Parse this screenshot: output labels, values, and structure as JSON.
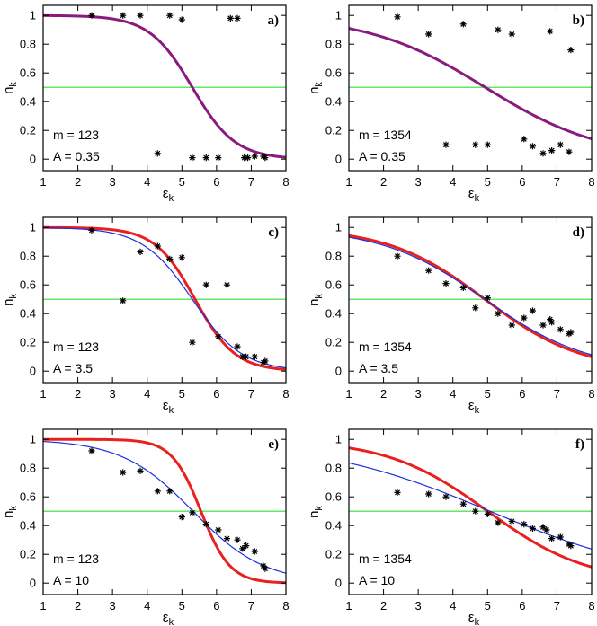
{
  "colors": {
    "green": "#33dd33",
    "purple": "#8b1a7e",
    "red": "#e8211f",
    "blue": "#1a30e0",
    "marker": "#000000"
  },
  "chart_data": [
    {
      "type": "scatter",
      "panel_label": "a)",
      "xlabel": "ε",
      "xlabel_sub": "k",
      "ylabel": "n",
      "ylabel_sub": "k",
      "xlim": [
        1,
        8
      ],
      "ylim": [
        -0.08,
        1.07
      ],
      "xticks": [
        1,
        2,
        3,
        4,
        5,
        6,
        7,
        8
      ],
      "yticks": [
        0,
        0.2,
        0.4,
        0.6,
        0.8,
        1
      ],
      "annotations": [
        "m = 123",
        "A = 0.35"
      ],
      "hline": 0.5,
      "curves": [
        {
          "name": "fit",
          "color": "purple",
          "x0": 5.3,
          "w": 0.62,
          "width": 3
        }
      ],
      "points": {
        "x": [
          2.4,
          3.3,
          3.8,
          4.3,
          4.65,
          5.0,
          5.3,
          5.7,
          6.05,
          6.4,
          6.6,
          6.8,
          6.9,
          7.1,
          7.35,
          7.4
        ],
        "y": [
          1.0,
          1.0,
          1.0,
          0.04,
          1.0,
          0.97,
          0.01,
          0.01,
          0.01,
          0.98,
          0.98,
          0.01,
          0.01,
          0.02,
          0.02,
          0.01
        ]
      }
    },
    {
      "type": "scatter",
      "panel_label": "b)",
      "xlabel": "ε",
      "xlabel_sub": "k",
      "ylabel": "n",
      "ylabel_sub": "k",
      "xlim": [
        1,
        8
      ],
      "ylim": [
        -0.08,
        1.07
      ],
      "xticks": [
        1,
        2,
        3,
        4,
        5,
        6,
        7,
        8
      ],
      "yticks": [
        0,
        0.2,
        0.4,
        0.6,
        0.8,
        1
      ],
      "annotations": [
        "m = 1354",
        "A = 0.35"
      ],
      "hline": 0.5,
      "curves": [
        {
          "name": "fit",
          "color": "purple",
          "x0": 4.93,
          "w": 1.7,
          "width": 3
        }
      ],
      "points": {
        "x": [
          2.4,
          3.3,
          3.8,
          4.3,
          4.65,
          5.0,
          5.3,
          5.7,
          6.05,
          6.3,
          6.6,
          6.8,
          6.85,
          7.1,
          7.35,
          7.4
        ],
        "y": [
          0.99,
          0.87,
          0.1,
          0.94,
          0.1,
          0.1,
          0.9,
          0.87,
          0.14,
          0.09,
          0.04,
          0.89,
          0.06,
          0.1,
          0.05,
          0.76
        ]
      }
    },
    {
      "type": "scatter",
      "panel_label": "c)",
      "xlabel": "ε",
      "xlabel_sub": "k",
      "ylabel": "n",
      "ylabel_sub": "k",
      "xlim": [
        1,
        8
      ],
      "ylim": [
        -0.08,
        1.07
      ],
      "xticks": [
        1,
        2,
        3,
        4,
        5,
        6,
        7,
        8
      ],
      "yticks": [
        0,
        0.2,
        0.4,
        0.6,
        0.8,
        1
      ],
      "annotations": [
        "m = 123",
        "A = 3.5"
      ],
      "hline": 0.5,
      "curves": [
        {
          "name": "red",
          "color": "red",
          "x0": 5.38,
          "w": 0.58,
          "width": 3
        },
        {
          "name": "blue",
          "color": "blue",
          "x0": 5.3,
          "w": 0.72,
          "width": 1.2
        }
      ],
      "points": {
        "x": [
          2.4,
          3.3,
          3.8,
          4.3,
          4.65,
          5.0,
          5.3,
          5.7,
          6.05,
          6.3,
          6.6,
          6.75,
          6.85,
          7.1,
          7.35,
          7.4
        ],
        "y": [
          0.98,
          0.49,
          0.83,
          0.87,
          0.78,
          0.79,
          0.2,
          0.6,
          0.24,
          0.6,
          0.17,
          0.1,
          0.1,
          0.1,
          0.06,
          0.07
        ]
      }
    },
    {
      "type": "scatter",
      "panel_label": "d)",
      "xlabel": "ε",
      "xlabel_sub": "k",
      "ylabel": "n",
      "ylabel_sub": "k",
      "xlim": [
        1,
        8
      ],
      "ylim": [
        -0.08,
        1.07
      ],
      "xticks": [
        1,
        2,
        3,
        4,
        5,
        6,
        7,
        8
      ],
      "yticks": [
        0,
        0.2,
        0.4,
        0.6,
        0.8,
        1
      ],
      "annotations": [
        "m = 1354",
        "A = 3.5"
      ],
      "hline": 0.5,
      "curves": [
        {
          "name": "red",
          "color": "red",
          "x0": 4.92,
          "w": 1.4,
          "width": 3
        },
        {
          "name": "blue",
          "color": "blue",
          "x0": 4.92,
          "w": 1.5,
          "width": 1.2
        }
      ],
      "points": {
        "x": [
          2.4,
          3.3,
          3.8,
          4.3,
          4.65,
          5.0,
          5.3,
          5.7,
          6.05,
          6.3,
          6.6,
          6.8,
          6.85,
          7.1,
          7.35,
          7.4
        ],
        "y": [
          0.8,
          0.7,
          0.61,
          0.58,
          0.44,
          0.51,
          0.4,
          0.32,
          0.37,
          0.42,
          0.32,
          0.36,
          0.34,
          0.29,
          0.26,
          0.27
        ]
      }
    },
    {
      "type": "scatter",
      "panel_label": "e)",
      "xlabel": "ε",
      "xlabel_sub": "k",
      "ylabel": "n",
      "ylabel_sub": "k",
      "xlim": [
        1,
        8
      ],
      "ylim": [
        -0.08,
        1.07
      ],
      "xticks": [
        1,
        2,
        3,
        4,
        5,
        6,
        7,
        8
      ],
      "yticks": [
        0,
        0.2,
        0.4,
        0.6,
        0.8,
        1
      ],
      "annotations": [
        "m = 123",
        "A = 10"
      ],
      "hline": 0.5,
      "curves": [
        {
          "name": "red",
          "color": "red",
          "x0": 5.55,
          "w": 0.42,
          "width": 3
        },
        {
          "name": "blue",
          "color": "blue",
          "x0": 5.32,
          "w": 1.03,
          "width": 1.2
        }
      ],
      "points": {
        "x": [
          2.4,
          3.3,
          3.8,
          4.3,
          4.65,
          5.0,
          5.3,
          5.7,
          6.05,
          6.3,
          6.6,
          6.75,
          6.85,
          7.1,
          7.35,
          7.4
        ],
        "y": [
          0.92,
          0.77,
          0.78,
          0.64,
          0.64,
          0.46,
          0.49,
          0.41,
          0.37,
          0.31,
          0.3,
          0.24,
          0.26,
          0.22,
          0.12,
          0.1
        ]
      }
    },
    {
      "type": "scatter",
      "panel_label": "f)",
      "xlabel": "ε",
      "xlabel_sub": "k",
      "ylabel": "n",
      "ylabel_sub": "k",
      "xlim": [
        1,
        8
      ],
      "ylim": [
        -0.08,
        1.07
      ],
      "xticks": [
        1,
        2,
        3,
        4,
        5,
        6,
        7,
        8
      ],
      "yticks": [
        0,
        0.2,
        0.4,
        0.6,
        0.8,
        1
      ],
      "annotations": [
        "m = 1354",
        "A = 10"
      ],
      "hline": 0.5,
      "curves": [
        {
          "name": "red",
          "color": "red",
          "x0": 5.0,
          "w": 1.45,
          "width": 3
        },
        {
          "name": "blue",
          "color": "blue",
          "x0": 5.07,
          "w": 2.5,
          "width": 1.2
        }
      ],
      "points": {
        "x": [
          2.4,
          3.3,
          3.8,
          4.3,
          4.65,
          5.0,
          5.3,
          5.7,
          6.05,
          6.3,
          6.6,
          6.7,
          6.85,
          7.1,
          7.35,
          7.4
        ],
        "y": [
          0.63,
          0.62,
          0.6,
          0.55,
          0.5,
          0.48,
          0.42,
          0.43,
          0.41,
          0.38,
          0.39,
          0.37,
          0.31,
          0.32,
          0.27,
          0.26
        ]
      }
    }
  ]
}
